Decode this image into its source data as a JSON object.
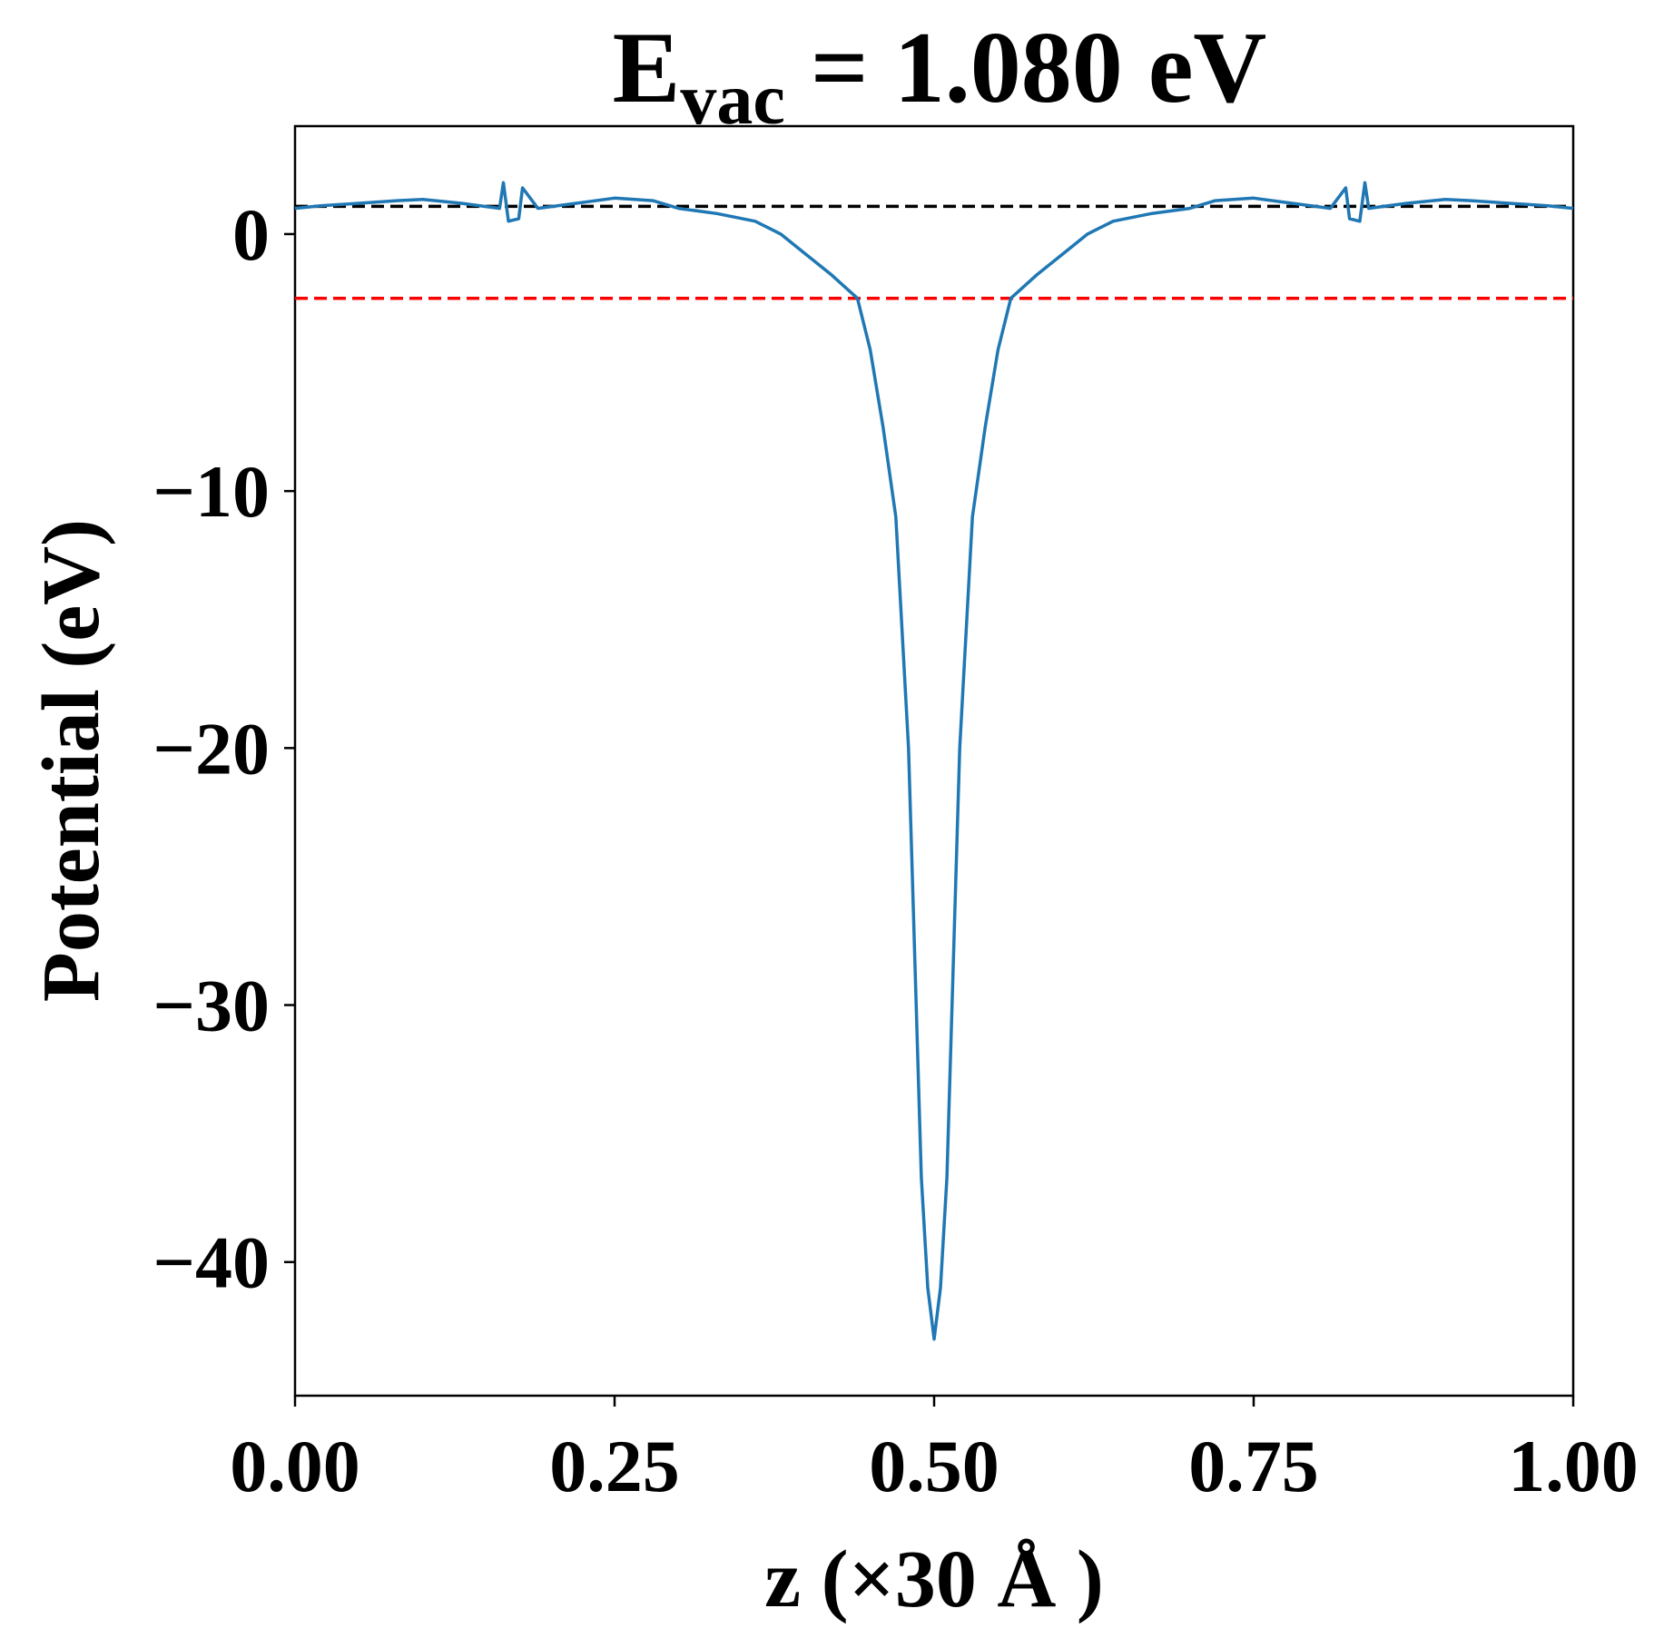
{
  "chart_data": {
    "type": "line",
    "title": {
      "base": "E",
      "subscript": "vac",
      "text": " = 1.080 eV"
    },
    "xlabel": "z (×30 Å )",
    "ylabel": "Potential (eV)",
    "xlim": [
      0,
      1
    ],
    "ylim": [
      -45.2,
      4.2
    ],
    "xticks": [
      {
        "value": 0,
        "label": "0.00"
      },
      {
        "value": 0.25,
        "label": "0.25"
      },
      {
        "value": 0.5,
        "label": "0.50"
      },
      {
        "value": 0.75,
        "label": "0.75"
      },
      {
        "value": 1,
        "label": "1.00"
      }
    ],
    "yticks": [
      0,
      {
        "value": -10,
        "label": "−10"
      },
      {
        "value": -20,
        "label": "−20"
      },
      {
        "value": -30,
        "label": "−30"
      },
      {
        "value": -40,
        "label": "−40"
      }
    ],
    "hlines": [
      {
        "value": 1.08,
        "color": "#000000"
      },
      {
        "value": -2.5,
        "color": "#ff0000"
      }
    ],
    "series": [
      {
        "color": "#1f77b4",
        "x": [
          0,
          0.02,
          0.05,
          0.08,
          0.1,
          0.13,
          0.16,
          0.163,
          0.167,
          0.175,
          0.178,
          0.19,
          0.22,
          0.25,
          0.28,
          0.3,
          0.33,
          0.36,
          0.38,
          0.4,
          0.42,
          0.44,
          0.45,
          0.46,
          0.47,
          0.48,
          0.49,
          0.495,
          0.5,
          0.505,
          0.51,
          0.52,
          0.53,
          0.54,
          0.55,
          0.56,
          0.58,
          0.6,
          0.62,
          0.64,
          0.67,
          0.7,
          0.72,
          0.75,
          0.78,
          0.81,
          0.822,
          0.825,
          0.833,
          0.837,
          0.84,
          0.87,
          0.9,
          0.92,
          0.95,
          0.98,
          1.0
        ],
        "values": [
          1.0,
          1.1,
          1.2,
          1.3,
          1.35,
          1.2,
          1.0,
          2.0,
          0.5,
          0.6,
          1.8,
          1.0,
          1.2,
          1.4,
          1.3,
          1.0,
          0.8,
          0.5,
          0.0,
          -0.8,
          -1.6,
          -2.5,
          -4.5,
          -7.5,
          -11,
          -20,
          -36.7,
          -41,
          -43,
          -41,
          -36.7,
          -20,
          -11,
          -7.5,
          -4.5,
          -2.5,
          -1.6,
          -0.8,
          0,
          0.5,
          0.8,
          1.0,
          1.3,
          1.4,
          1.2,
          1.0,
          1.8,
          0.6,
          0.5,
          2.0,
          1.0,
          1.2,
          1.35,
          1.3,
          1.2,
          1.1,
          1.0
        ]
      }
    ]
  }
}
